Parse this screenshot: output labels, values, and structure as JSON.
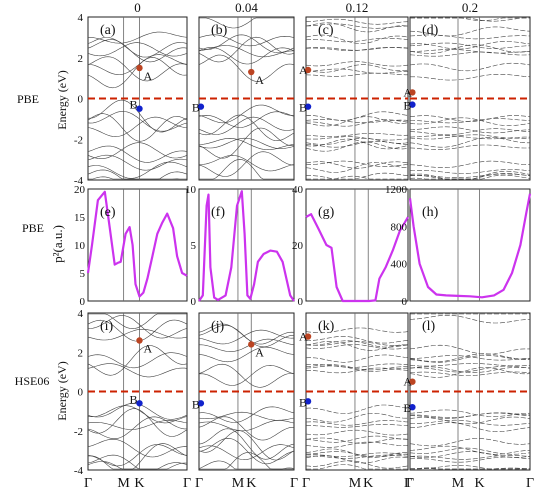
{
  "figure": {
    "column_headers": [
      "0",
      "0.04",
      "0.12",
      "0.2"
    ],
    "row_labels": [
      "PBE",
      "PBE",
      "HSE06"
    ],
    "x_tick_labels": [
      "Γ",
      "M",
      "K",
      "Γ"
    ],
    "band_y_ticks": [
      "4",
      "2",
      "0",
      "-2",
      "-4"
    ],
    "band_ylabel": "Energy (eV)",
    "p2_ylabel": "p²(a.u.)",
    "point_label_A": "A",
    "point_label_B": "B",
    "colors": {
      "curve": "#cc33ee",
      "fermi": "#cc2200",
      "pointA": "#bb4422",
      "pointB": "#1122cc",
      "band": "#444444"
    }
  },
  "chart_data": [
    {
      "panel": "(a)",
      "type": "line",
      "method": "PBE",
      "column": "0",
      "ylabel": "Energy (eV)",
      "ylim": [
        -4,
        4
      ],
      "categories": [
        "Γ",
        "M",
        "K",
        "Γ"
      ],
      "fermi_level": 0,
      "A": {
        "x": "K",
        "y": 1.5
      },
      "B": {
        "x": "K",
        "y": -0.5
      }
    },
    {
      "panel": "(b)",
      "type": "line",
      "method": "PBE",
      "column": "0.04",
      "ylim": [
        -4,
        4
      ],
      "categories": [
        "Γ",
        "M",
        "K",
        "Γ"
      ],
      "fermi_level": 0,
      "A": {
        "x": "K",
        "y": 1.3
      },
      "B": {
        "x": "Γ",
        "y": -0.4
      }
    },
    {
      "panel": "(c)",
      "type": "line",
      "method": "PBE",
      "column": "0.12",
      "ylim": [
        -4,
        4
      ],
      "categories": [
        "Γ",
        "M",
        "K",
        "Γ"
      ],
      "fermi_level": 0,
      "A": {
        "x": "Γ",
        "y": 1.4
      },
      "B": {
        "x": "Γ",
        "y": -0.4
      }
    },
    {
      "panel": "(d)",
      "type": "line",
      "method": "PBE",
      "column": "0.2",
      "ylim": [
        -4,
        4
      ],
      "categories": [
        "Γ",
        "M",
        "K",
        "Γ"
      ],
      "fermi_level": 0,
      "A": {
        "x": "Γ",
        "y": 0.3
      },
      "B": {
        "x": "Γ",
        "y": -0.3
      }
    },
    {
      "panel": "(e)",
      "type": "line",
      "method": "PBE",
      "column": "0",
      "ylabel": "p²(a.u.)",
      "ylim": [
        0,
        20
      ],
      "y_ticks": [
        0,
        5,
        10,
        15,
        20
      ],
      "categories": [
        "Γ",
        "M",
        "K",
        "Γ"
      ],
      "x": [
        0,
        0.04,
        0.1,
        0.17,
        0.22,
        0.27,
        0.3,
        0.33,
        0.38,
        0.42,
        0.45,
        0.48,
        0.52,
        0.56,
        0.6,
        0.65,
        0.7,
        0.75,
        0.8,
        0.86,
        0.9,
        0.95,
        1
      ],
      "values": [
        5,
        10,
        18,
        19.5,
        13,
        6.5,
        6.8,
        7,
        12,
        13.2,
        10,
        3,
        0.8,
        1.5,
        4,
        8,
        12,
        14,
        15.6,
        13,
        8,
        5,
        4.5
      ]
    },
    {
      "panel": "(f)",
      "type": "line",
      "method": "PBE",
      "column": "0.04",
      "ylim": [
        0,
        10
      ],
      "y_ticks": [
        0,
        5,
        10
      ],
      "categories": [
        "Γ",
        "M",
        "K",
        "Γ"
      ],
      "x": [
        0,
        0.04,
        0.08,
        0.1,
        0.12,
        0.16,
        0.2,
        0.28,
        0.34,
        0.4,
        0.45,
        0.48,
        0.51,
        0.54,
        0.58,
        0.62,
        0.68,
        0.75,
        0.82,
        0.88,
        0.92,
        0.96,
        1
      ],
      "values": [
        0,
        0.5,
        8.5,
        9.5,
        3,
        0.3,
        0.1,
        0.5,
        3,
        8.5,
        9.8,
        6,
        0.5,
        0.2,
        1.5,
        3.5,
        4.2,
        4.5,
        4.4,
        3.5,
        2,
        0.5,
        0
      ]
    },
    {
      "panel": "(g)",
      "type": "line",
      "method": "PBE",
      "column": "0.12",
      "ylim": [
        0,
        40
      ],
      "y_ticks": [
        0,
        20,
        40
      ],
      "categories": [
        "Γ",
        "M",
        "K",
        "Γ"
      ],
      "x": [
        0,
        0.05,
        0.12,
        0.2,
        0.25,
        0.3,
        0.36,
        0.45,
        0.55,
        0.62,
        0.68,
        0.72,
        0.78,
        0.85,
        0.92,
        1
      ],
      "values": [
        30,
        31,
        26,
        20,
        19,
        5,
        0,
        0,
        0,
        0,
        0.2,
        8,
        12,
        18,
        25,
        30
      ]
    },
    {
      "panel": "(h)",
      "type": "line",
      "method": "PBE",
      "column": "0.2",
      "ylim": [
        0,
        1200
      ],
      "y_ticks": [
        0,
        400,
        800,
        1200
      ],
      "categories": [
        "Γ",
        "M",
        "K",
        "Γ"
      ],
      "x": [
        0,
        0.03,
        0.08,
        0.15,
        0.22,
        0.3,
        0.4,
        0.5,
        0.6,
        0.7,
        0.78,
        0.85,
        0.92,
        0.97,
        1
      ],
      "values": [
        1100,
        800,
        400,
        150,
        70,
        60,
        55,
        50,
        40,
        60,
        120,
        300,
        600,
        950,
        1150
      ]
    },
    {
      "panel": "(i)",
      "type": "line",
      "method": "HSE06",
      "column": "0",
      "ylabel": "Energy (eV)",
      "ylim": [
        -4,
        4
      ],
      "categories": [
        "Γ",
        "M",
        "K",
        "Γ"
      ],
      "fermi_level": 0,
      "A": {
        "x": "K",
        "y": 2.6
      },
      "B": {
        "x": "K",
        "y": -0.6
      }
    },
    {
      "panel": "(j)",
      "type": "line",
      "method": "HSE06",
      "column": "0.04",
      "ylim": [
        -4,
        4
      ],
      "categories": [
        "Γ",
        "M",
        "K",
        "Γ"
      ],
      "fermi_level": 0,
      "A": {
        "x": "K",
        "y": 2.4
      },
      "B": {
        "x": "Γ",
        "y": -0.6
      }
    },
    {
      "panel": "(k)",
      "type": "line",
      "method": "HSE06",
      "column": "0.12",
      "ylim": [
        -4,
        4
      ],
      "categories": [
        "Γ",
        "M",
        "K",
        "Γ"
      ],
      "fermi_level": 0,
      "A": {
        "x": "Γ",
        "y": 2.8
      },
      "B": {
        "x": "Γ",
        "y": -0.5
      }
    },
    {
      "panel": "(l)",
      "type": "line",
      "method": "HSE06",
      "column": "0.2",
      "ylim": [
        -4,
        4
      ],
      "categories": [
        "Γ",
        "M",
        "K",
        "Γ"
      ],
      "fermi_level": 0,
      "A": {
        "x": "Γ",
        "y": 0.5
      },
      "B": {
        "x": "Γ",
        "y": -0.8
      }
    }
  ]
}
